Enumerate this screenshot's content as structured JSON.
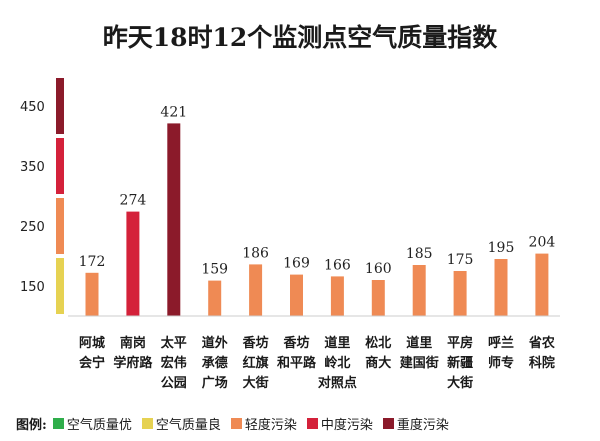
{
  "chart_data": {
    "type": "bar",
    "title": "昨天18时12个监测点空气质量指数",
    "yticks": [
      "450",
      "350",
      "250",
      "150"
    ],
    "scale_bands": [
      {
        "from": 400,
        "to": 500,
        "color": "#8b1a2a"
      },
      {
        "from": 300,
        "to": 400,
        "color": "#d4213a"
      },
      {
        "from": 200,
        "to": 300,
        "color": "#ef8a54"
      },
      {
        "from": 100,
        "to": 200,
        "color": "#e6d252"
      }
    ],
    "ylim": [
      100,
      500
    ],
    "categories": [
      [
        "阿城",
        "会宁"
      ],
      [
        "南岗",
        "学府路"
      ],
      [
        "太平",
        "宏伟",
        "公园"
      ],
      [
        "道外",
        "承德",
        "广场"
      ],
      [
        "香坊",
        "红旗",
        "大街"
      ],
      [
        "香坊",
        "和平路"
      ],
      [
        "道里",
        "岭北",
        "对照点"
      ],
      [
        "松北",
        "商大"
      ],
      [
        "道里",
        "建国街"
      ],
      [
        "平房",
        "新疆",
        "大街"
      ],
      [
        "呼兰",
        "师专"
      ],
      [
        "省农",
        "科院"
      ]
    ],
    "values": [
      172,
      274,
      421,
      159,
      186,
      169,
      166,
      160,
      185,
      175,
      195,
      204
    ],
    "value_labels": [
      "172",
      "274",
      "421",
      "159",
      "186",
      "169",
      "166",
      "160",
      "185",
      "175",
      "195",
      "204"
    ],
    "bar_colors": [
      "#ef8a54",
      "#d4213a",
      "#8b1a2a",
      "#ef8a54",
      "#ef8a54",
      "#ef8a54",
      "#ef8a54",
      "#ef8a54",
      "#ef8a54",
      "#ef8a54",
      "#ef8a54",
      "#ef8a54"
    ]
  },
  "legend": {
    "title": "图例:",
    "items": [
      {
        "label": "空气质量优",
        "color": "#2fae4b"
      },
      {
        "label": "空气质量良",
        "color": "#e6d252"
      },
      {
        "label": "轻度污染",
        "color": "#ef8a54"
      },
      {
        "label": "中度污染",
        "color": "#d4213a"
      },
      {
        "label": "重度污染",
        "color": "#8b1a2a"
      }
    ]
  }
}
